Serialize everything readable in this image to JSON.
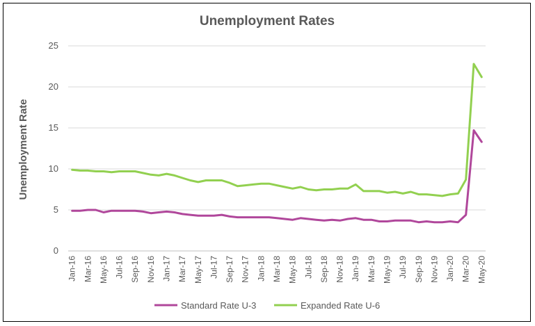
{
  "chart_data": {
    "type": "line",
    "title": "Unemployment Rates",
    "xlabel": "",
    "ylabel": "Unemployment Rate",
    "ylim": [
      0,
      25
    ],
    "yticks": [
      0,
      5,
      10,
      15,
      20,
      25
    ],
    "grid": true,
    "legend_position": "bottom",
    "categories": [
      "Jan-16",
      "Feb-16",
      "Mar-16",
      "Apr-16",
      "May-16",
      "Jun-16",
      "Jul-16",
      "Aug-16",
      "Sep-16",
      "Oct-16",
      "Nov-16",
      "Dec-16",
      "Jan-17",
      "Feb-17",
      "Mar-17",
      "Apr-17",
      "May-17",
      "Jun-17",
      "Jul-17",
      "Aug-17",
      "Sep-17",
      "Oct-17",
      "Nov-17",
      "Dec-17",
      "Jan-18",
      "Feb-18",
      "Mar-18",
      "Apr-18",
      "May-18",
      "Jun-18",
      "Jul-18",
      "Aug-18",
      "Sep-18",
      "Oct-18",
      "Nov-18",
      "Dec-18",
      "Jan-19",
      "Feb-19",
      "Mar-19",
      "Apr-19",
      "May-19",
      "Jun-19",
      "Jul-19",
      "Aug-19",
      "Sep-19",
      "Oct-19",
      "Nov-19",
      "Dec-19",
      "Jan-20",
      "Feb-20",
      "Mar-20",
      "Apr-20",
      "May-20"
    ],
    "tick_labels": [
      "Jan-16",
      "Mar-16",
      "May-16",
      "Jul-16",
      "Sep-16",
      "Nov-16",
      "Jan-17",
      "Mar-17",
      "May-17",
      "Jul-17",
      "Sep-17",
      "Nov-17",
      "Jan-18",
      "Mar-18",
      "May-18",
      "Jul-18",
      "Sep-18",
      "Nov-18",
      "Jan-19",
      "Mar-19",
      "May-19",
      "Jul-19",
      "Sep-19",
      "Nov-19",
      "Jan-20",
      "Mar-20",
      "May-20"
    ],
    "series": [
      {
        "name": "Standard Rate U-3",
        "color": "#B0479B",
        "values": [
          4.9,
          4.9,
          5.0,
          5.0,
          4.7,
          4.9,
          4.9,
          4.9,
          4.9,
          4.8,
          4.6,
          4.7,
          4.8,
          4.7,
          4.5,
          4.4,
          4.3,
          4.3,
          4.3,
          4.4,
          4.2,
          4.1,
          4.1,
          4.1,
          4.1,
          4.1,
          4.0,
          3.9,
          3.8,
          4.0,
          3.9,
          3.8,
          3.7,
          3.8,
          3.7,
          3.9,
          4.0,
          3.8,
          3.8,
          3.6,
          3.6,
          3.7,
          3.7,
          3.7,
          3.5,
          3.6,
          3.5,
          3.5,
          3.6,
          3.5,
          4.4,
          14.7,
          13.3
        ]
      },
      {
        "name": "Expanded Rate U-6",
        "color": "#92D050",
        "values": [
          9.9,
          9.8,
          9.8,
          9.7,
          9.7,
          9.6,
          9.7,
          9.7,
          9.7,
          9.5,
          9.3,
          9.2,
          9.4,
          9.2,
          8.9,
          8.6,
          8.4,
          8.6,
          8.6,
          8.6,
          8.3,
          7.9,
          8.0,
          8.1,
          8.2,
          8.2,
          8.0,
          7.8,
          7.6,
          7.8,
          7.5,
          7.4,
          7.5,
          7.5,
          7.6,
          7.6,
          8.1,
          7.3,
          7.3,
          7.3,
          7.1,
          7.2,
          7.0,
          7.2,
          6.9,
          6.9,
          6.8,
          6.7,
          6.9,
          7.0,
          8.7,
          22.8,
          21.2
        ]
      }
    ]
  }
}
